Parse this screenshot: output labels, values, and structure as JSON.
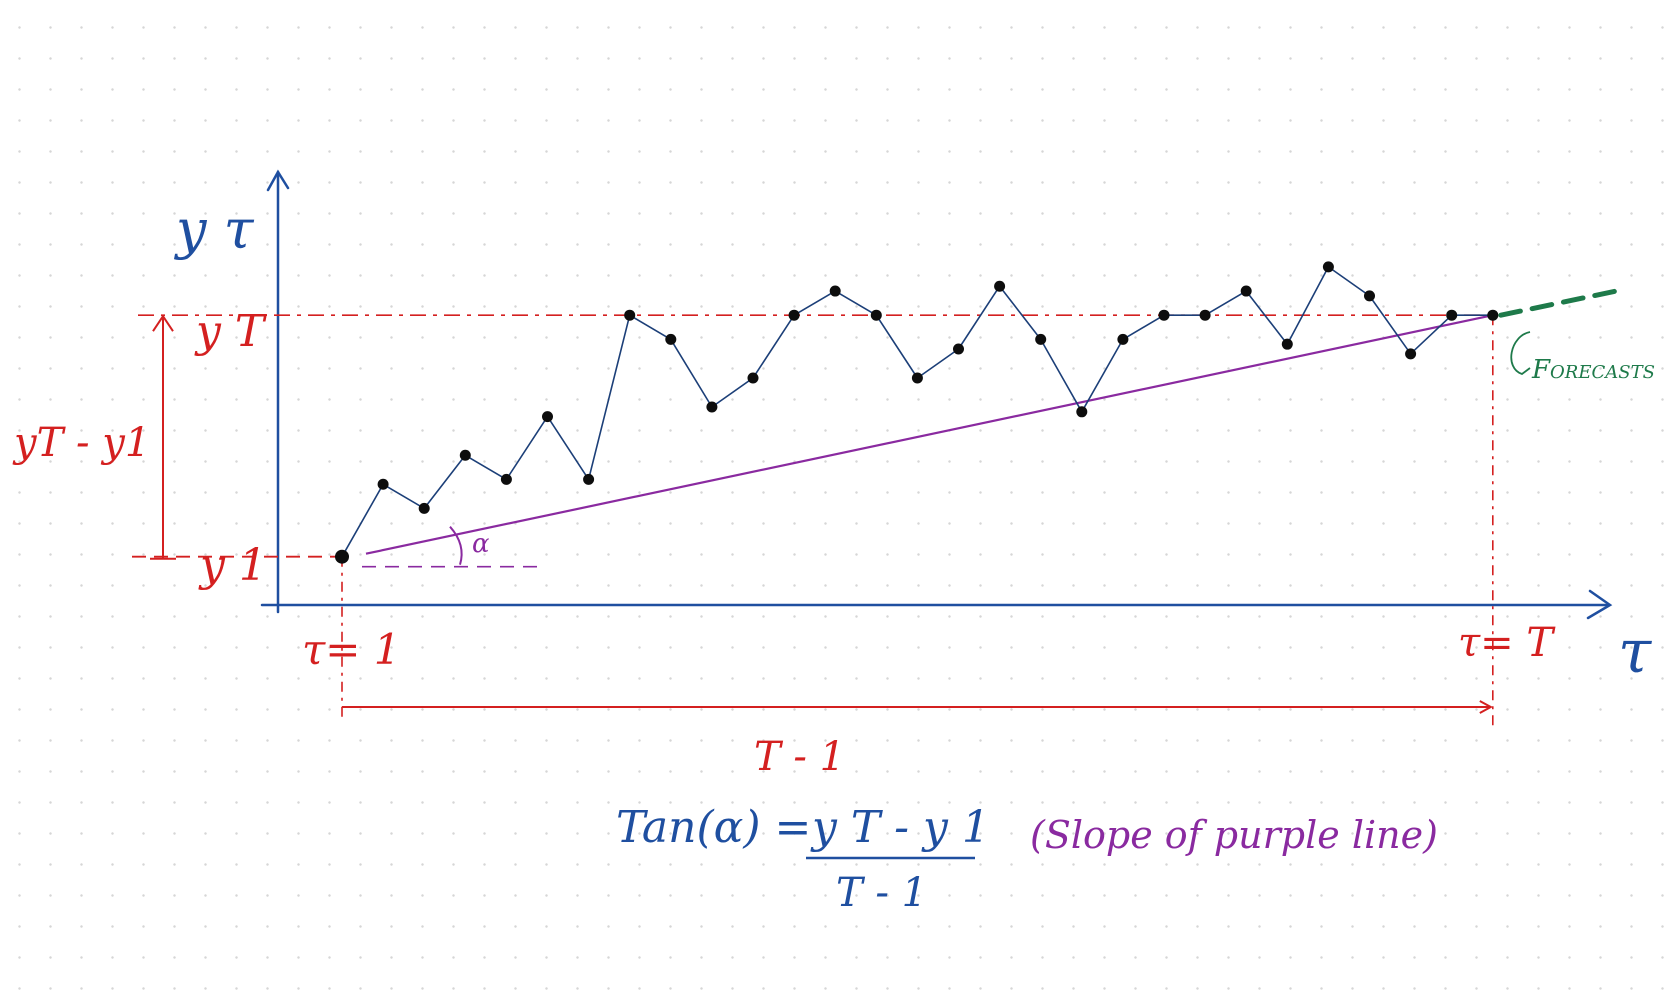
{
  "colors": {
    "axis": "#1f4fa0",
    "annotation": "#d42020",
    "series": "#1c3f78",
    "trend": "#8a2aa0",
    "forecast": "#1e7a4a",
    "point": "#0d0d0d"
  },
  "labels": {
    "y_axis": "y τ",
    "x_axis": "τ",
    "y_T": "y T",
    "y_1": "y 1",
    "diff": "yT - y1",
    "t1": "τ= 1",
    "tT": "τ= T",
    "span": "T - 1",
    "alpha": "α",
    "forecasts": "Forecasts",
    "formula_lhs": "Tan(α) =",
    "formula_num": "y T - y 1",
    "formula_den": "T - 1",
    "formula_note": "(Slope of purple line)"
  },
  "chart_data": {
    "type": "line",
    "x": [
      1,
      2,
      3,
      4,
      5,
      6,
      7,
      8,
      9,
      10,
      11,
      12,
      13,
      14,
      15,
      16,
      17,
      18,
      19,
      20,
      21,
      22,
      23,
      24,
      25,
      26,
      27,
      28,
      29
    ],
    "y": [
      1.0,
      2.5,
      2.0,
      3.1,
      2.6,
      3.9,
      2.6,
      6.0,
      5.5,
      4.1,
      4.7,
      6.0,
      6.5,
      6.0,
      4.7,
      5.3,
      6.6,
      5.5,
      4.0,
      5.5,
      6.0,
      6.0,
      6.5,
      5.4,
      7.0,
      6.4,
      5.2,
      6.0,
      6.0
    ],
    "ylim": [
      0,
      8.5
    ],
    "forecast": {
      "x": [
        29,
        32
      ],
      "y": [
        6.0,
        6.5
      ]
    }
  }
}
